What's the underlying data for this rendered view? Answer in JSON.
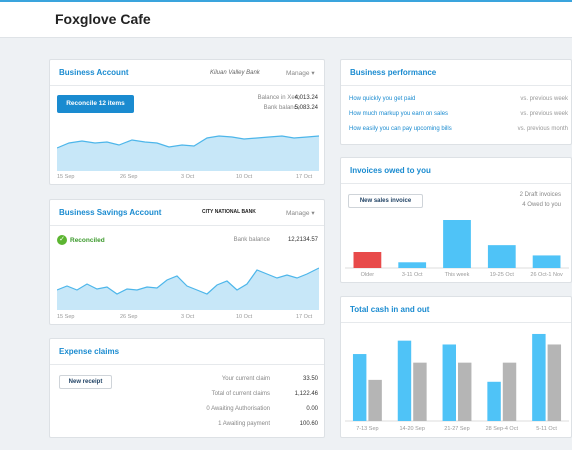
{
  "header": {
    "org_name": "Foxglove Cafe"
  },
  "business_account": {
    "title": "Business Account",
    "bank_name": "Kiluan Valley Bank",
    "manage_label": "Manage",
    "reconcile_button": "Reconcile 12 items",
    "balance_in_xero_label": "Balance in Xero",
    "balance_in_xero_value": "4,013.24",
    "bank_balance_label": "Bank balance",
    "bank_balance_value": "5,083.24",
    "x_labels": [
      "15 Sep",
      "26 Sep",
      "3 Oct",
      "10 Oct",
      "17 Oct"
    ]
  },
  "savings_account": {
    "title": "Business Savings Account",
    "bank_name": "CITY NATIONAL BANK",
    "manage_label": "Manage",
    "reconciled_label": "Reconciled",
    "bank_balance_label": "Bank balance",
    "bank_balance_value": "12,2134.57",
    "x_labels": [
      "15 Sep",
      "26 Sep",
      "3 Oct",
      "10 Oct",
      "17 Oct"
    ]
  },
  "expense_claims": {
    "title": "Expense claims",
    "new_receipt_button": "New receipt",
    "rows": [
      {
        "label": "Your current claim",
        "value": "33.50"
      },
      {
        "label": "Total of current claims",
        "value": "1,122.46"
      },
      {
        "label": "0 Awaiting Authorisation",
        "value": "0.00"
      },
      {
        "label": "1 Awaiting payment",
        "value": "100.60"
      }
    ]
  },
  "business_performance": {
    "title": "Business performance",
    "rows": [
      {
        "label": "How quickly you get paid",
        "compare": "vs. previous week"
      },
      {
        "label": "How much markup you earn on sales",
        "compare": "vs. previous week"
      },
      {
        "label": "How easily you can pay upcoming bills",
        "compare": "vs. previous month"
      }
    ]
  },
  "invoices_owed": {
    "title": "Invoices owed to you",
    "new_invoice_button": "New sales invoice",
    "draft_label": "2 Draft invoices",
    "owed_label": "4 Owed to you",
    "chart_data": {
      "type": "bar",
      "categories": [
        "Older",
        "3-11 Oct",
        "This week",
        "19-25 Oct",
        "26 Oct-1 Nov"
      ],
      "values": [
        14,
        5,
        42,
        20,
        11
      ],
      "colors": [
        "#e84a4a",
        "#4fc3f7",
        "#4fc3f7",
        "#4fc3f7",
        "#4fc3f7"
      ]
    }
  },
  "cash_in_out": {
    "title": "Total cash in and out",
    "chart_data": {
      "type": "bar",
      "categories": [
        "7-13 Sep",
        "14-20 Sep",
        "21-27 Sep",
        "28 Sep-4 Oct",
        "5-11 Oct"
      ],
      "series": [
        {
          "values": [
            70,
            84,
            80,
            41,
            91
          ]
        },
        {
          "values": [
            43,
            61,
            61,
            61,
            80
          ]
        }
      ],
      "colors": [
        "#4fc3f7",
        "#b5b5b5"
      ]
    }
  },
  "colors": {
    "accent": "#1a8bd0",
    "area": "#c7e7f8",
    "line": "#4db6ea"
  }
}
